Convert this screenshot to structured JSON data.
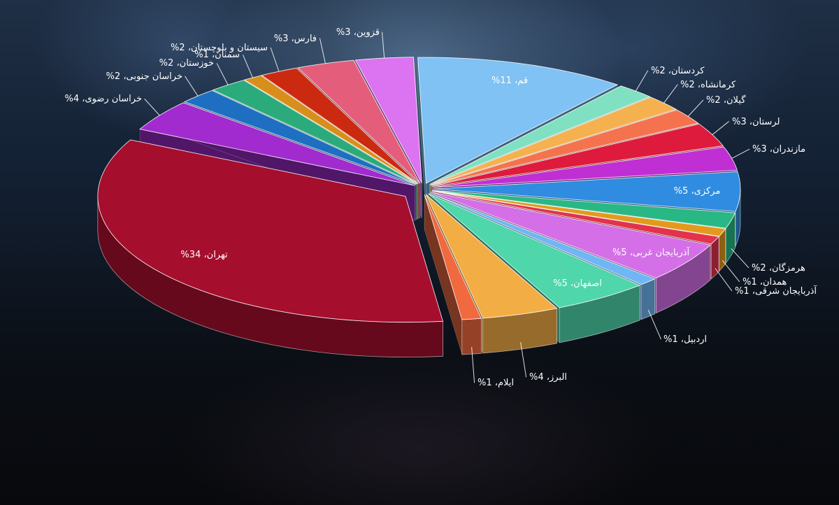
{
  "chart_data": {
    "type": "pie",
    "title": "",
    "slices": [
      {
        "label": "تهران، 34%",
        "value": 34,
        "color": "#a50e2d"
      },
      {
        "label": "خراسان رضوی، 4%",
        "value": 4,
        "color": "#a12bcf"
      },
      {
        "label": "خراسان جنوبی، 2%",
        "value": 2,
        "color": "#1e6fc1"
      },
      {
        "label": "خوزستان، 2%",
        "value": 2,
        "color": "#2bab7c"
      },
      {
        "label": "سمنان، 1%",
        "value": 1,
        "color": "#d88e1a"
      },
      {
        "label": "سیستان و بلوچستان، 2%",
        "value": 2,
        "color": "#cc2a10"
      },
      {
        "label": "فارس، 3%",
        "value": 3,
        "color": "#e45e7c"
      },
      {
        "label": "قزوین، 3%",
        "value": 3,
        "color": "#dc73f0"
      },
      {
        "label": "قم، 11%",
        "value": 11,
        "color": "#7fc2f3"
      },
      {
        "label": "کردستان، 2%",
        "value": 2,
        "color": "#7fe0c2"
      },
      {
        "label": "کرمانشاه، 2%",
        "value": 2,
        "color": "#f5b050"
      },
      {
        "label": "گیلان، 2%",
        "value": 2,
        "color": "#f4734e"
      },
      {
        "label": "لرستان، 3%",
        "value": 3,
        "color": "#de1b3c"
      },
      {
        "label": "مازندران، 3%",
        "value": 3,
        "color": "#c02fd3"
      },
      {
        "label": "مرکزی، 5%",
        "value": 5,
        "color": "#2f8ce0"
      },
      {
        "label": "هرمزگان، 2%",
        "value": 2,
        "color": "#29b885"
      },
      {
        "label": "همدان، 1%",
        "value": 1,
        "color": "#e39a1c"
      },
      {
        "label": "آذربایجان شرقی، 1%",
        "value": 1,
        "color": "#e2324e"
      },
      {
        "label": "آذربایجان غربی، 5%",
        "value": 5,
        "color": "#d46fe8"
      },
      {
        "label": "اردبیل، 1%",
        "value": 1,
        "color": "#6fb6f4"
      },
      {
        "label": "اصفهان، 5%",
        "value": 5,
        "color": "#4fd6ab"
      },
      {
        "label": "البرز، 4%",
        "value": 4,
        "color": "#f3ad45"
      },
      {
        "label": "ایلام، 1%",
        "value": 1,
        "color": "#f0693f"
      }
    ]
  }
}
